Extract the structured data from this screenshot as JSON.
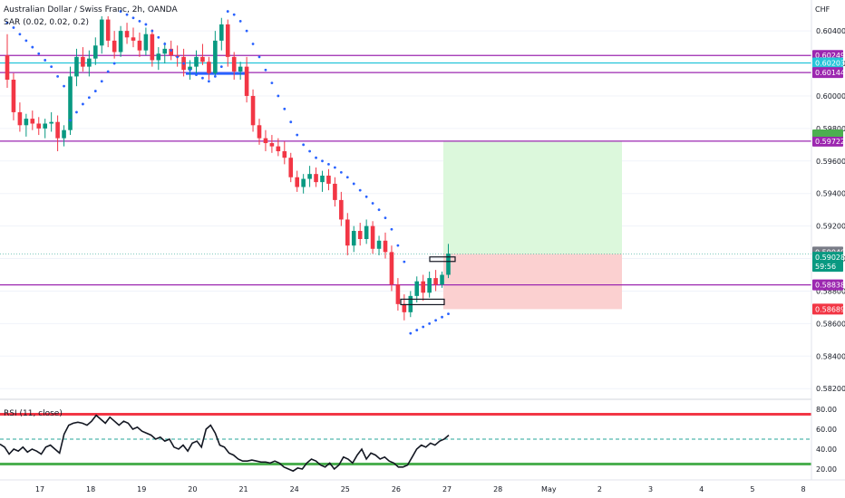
{
  "header": {
    "title": "Australian Dollar / Swiss Franc, 2h, OANDA",
    "sar_label": "SAR (0.02, 0.02, 0.2)",
    "currency": "CHF"
  },
  "rsi": {
    "label": "RSI (11, close)",
    "ticks": [
      "80.00",
      "60.00",
      "40.00",
      "20.00"
    ],
    "tick_values": [
      80,
      60,
      40,
      20
    ],
    "upper_level": 75,
    "lower_level": 25,
    "mid_level": 50,
    "values": [
      45,
      42,
      35,
      40,
      38,
      42,
      37,
      40,
      38,
      35,
      42,
      44,
      40,
      36,
      55,
      64,
      66,
      67,
      66,
      64,
      68,
      74,
      70,
      66,
      72,
      68,
      64,
      68,
      66,
      60,
      62,
      58,
      56,
      54,
      50,
      52,
      48,
      50,
      42,
      40,
      44,
      38,
      46,
      48,
      42,
      60,
      64,
      56,
      44,
      42,
      36,
      34,
      30,
      28,
      28,
      29,
      28,
      27,
      27,
      26,
      28,
      26,
      22,
      20,
      18,
      21,
      20,
      26,
      30,
      28,
      24,
      22,
      26,
      20,
      24,
      32,
      30,
      26,
      34,
      40,
      30,
      36,
      34,
      30,
      32,
      28,
      26,
      22,
      22,
      24,
      32,
      40,
      44,
      42,
      46,
      44,
      48,
      50,
      54
    ],
    "colors": {
      "upper": "#f23645",
      "lower": "#4caf50",
      "mid": "#26a69a",
      "line": "#131722"
    }
  },
  "price_axis": {
    "ticks": [
      "0.60400",
      "0.60200",
      "0.60000",
      "0.59800",
      "0.59600",
      "0.59400",
      "0.59200",
      "0.59000",
      "0.58800",
      "0.58600",
      "0.58400",
      "0.58200"
    ],
    "tick_values": [
      0.604,
      0.602,
      0.6,
      0.598,
      0.596,
      0.594,
      0.592,
      0.59,
      0.588,
      0.586,
      0.584,
      0.582
    ]
  },
  "time_axis": {
    "labels": [
      "17",
      "18",
      "19",
      "20",
      "21",
      "24",
      "25",
      "26",
      "27",
      "28",
      "May",
      "2",
      "3",
      "4",
      "5",
      "8"
    ]
  },
  "levels": [
    {
      "value": 0.60249,
      "label": "0.60249",
      "color": "#9c27b0"
    },
    {
      "value": 0.60203,
      "label": "0.60203",
      "color": "#26c6da"
    },
    {
      "value": 0.60144,
      "label": "0.60144",
      "color": "#9c27b0"
    },
    {
      "value": 0.59722,
      "label": "0.59722",
      "color": "#9c27b0"
    },
    {
      "value": 0.58838,
      "label": "0.58838",
      "color": "#9c27b0"
    }
  ],
  "position": {
    "target": 0.5972,
    "entry": 0.59028,
    "stop": 0.58689,
    "target_label": "0.59722",
    "stop_label": "0.58689",
    "profit_color": "#dcf8dc",
    "loss_color": "#fbd0d0"
  },
  "current_price": {
    "value": 0.59028,
    "label": "0.59028",
    "countdown": "59:56",
    "color": "#089981"
  },
  "prev_close": {
    "value": 0.5904,
    "label": "0.59040",
    "color": "#787b86"
  },
  "chart_data": {
    "type": "candlestick",
    "symbol": "AUDCHF",
    "timeframe": "2h",
    "ylim": [
      0.5814,
      0.6059
    ],
    "colors": {
      "up": "#089981",
      "down": "#f23645",
      "sar": "#2962ff"
    },
    "candles": [
      [
        0.6025,
        0.6038,
        0.6005,
        0.601
      ],
      [
        0.601,
        0.6014,
        0.5985,
        0.599
      ],
      [
        0.599,
        0.5996,
        0.5978,
        0.5982
      ],
      [
        0.5982,
        0.5989,
        0.5975,
        0.5986
      ],
      [
        0.5986,
        0.5991,
        0.5979,
        0.5983
      ],
      [
        0.5983,
        0.5987,
        0.5976,
        0.598
      ],
      [
        0.598,
        0.5986,
        0.5974,
        0.5983
      ],
      [
        0.5983,
        0.599,
        0.5978,
        0.5984
      ],
      [
        0.5984,
        0.5988,
        0.5966,
        0.5974
      ],
      [
        0.5974,
        0.5982,
        0.5969,
        0.5979
      ],
      [
        0.5979,
        0.6018,
        0.5976,
        0.6012
      ],
      [
        0.6012,
        0.6029,
        0.6006,
        0.6024
      ],
      [
        0.6024,
        0.603,
        0.6015,
        0.6018
      ],
      [
        0.6018,
        0.6028,
        0.6012,
        0.6023
      ],
      [
        0.6023,
        0.6036,
        0.6019,
        0.6031
      ],
      [
        0.6031,
        0.6049,
        0.6026,
        0.6047
      ],
      [
        0.6047,
        0.6049,
        0.603,
        0.6034
      ],
      [
        0.6034,
        0.604,
        0.6023,
        0.6027
      ],
      [
        0.6027,
        0.6043,
        0.6024,
        0.604
      ],
      [
        0.604,
        0.6045,
        0.6032,
        0.6036
      ],
      [
        0.6036,
        0.6042,
        0.603,
        0.6034
      ],
      [
        0.6034,
        0.6039,
        0.6024,
        0.6028
      ],
      [
        0.6028,
        0.6042,
        0.6025,
        0.6038
      ],
      [
        0.6038,
        0.6041,
        0.6018,
        0.6022
      ],
      [
        0.6022,
        0.603,
        0.6016,
        0.6026
      ],
      [
        0.6026,
        0.6033,
        0.602,
        0.6029
      ],
      [
        0.6029,
        0.6034,
        0.6022,
        0.6025
      ],
      [
        0.6025,
        0.6031,
        0.6018,
        0.6024
      ],
      [
        0.6024,
        0.6029,
        0.6012,
        0.6016
      ],
      [
        0.6016,
        0.6022,
        0.601,
        0.6018
      ],
      [
        0.6018,
        0.6028,
        0.6014,
        0.6024
      ],
      [
        0.6024,
        0.6032,
        0.6019,
        0.6021
      ],
      [
        0.6021,
        0.6024,
        0.601,
        0.6014
      ],
      [
        0.6014,
        0.604,
        0.6012,
        0.6034
      ],
      [
        0.6034,
        0.6048,
        0.6028,
        0.6044
      ],
      [
        0.6044,
        0.6047,
        0.6018,
        0.6024
      ],
      [
        0.6024,
        0.6027,
        0.601,
        0.6015
      ],
      [
        0.6015,
        0.6021,
        0.601,
        0.6018
      ],
      [
        0.6018,
        0.6024,
        0.5996,
        0.6
      ],
      [
        0.6,
        0.6004,
        0.5978,
        0.5982
      ],
      [
        0.5982,
        0.5986,
        0.597,
        0.5974
      ],
      [
        0.5974,
        0.5979,
        0.5966,
        0.5971
      ],
      [
        0.5971,
        0.5976,
        0.5965,
        0.5969
      ],
      [
        0.5969,
        0.5974,
        0.5963,
        0.5966
      ],
      [
        0.5966,
        0.5972,
        0.5958,
        0.5962
      ],
      [
        0.5962,
        0.5965,
        0.5947,
        0.595
      ],
      [
        0.595,
        0.5954,
        0.5941,
        0.5944
      ],
      [
        0.5944,
        0.5952,
        0.594,
        0.5949
      ],
      [
        0.5949,
        0.5957,
        0.5944,
        0.5952
      ],
      [
        0.5952,
        0.5956,
        0.5944,
        0.5947
      ],
      [
        0.5947,
        0.5954,
        0.5941,
        0.5951
      ],
      [
        0.5951,
        0.5955,
        0.5942,
        0.5946
      ],
      [
        0.5946,
        0.595,
        0.5932,
        0.5936
      ],
      [
        0.5936,
        0.5941,
        0.592,
        0.5924
      ],
      [
        0.5924,
        0.5928,
        0.5902,
        0.5908
      ],
      [
        0.5908,
        0.592,
        0.5904,
        0.5917
      ],
      [
        0.5917,
        0.5922,
        0.5908,
        0.5912
      ],
      [
        0.5912,
        0.5924,
        0.5909,
        0.592
      ],
      [
        0.592,
        0.5923,
        0.5903,
        0.5906
      ],
      [
        0.5906,
        0.5914,
        0.5902,
        0.5911
      ],
      [
        0.5911,
        0.5916,
        0.59,
        0.5904
      ],
      [
        0.5904,
        0.5908,
        0.588,
        0.5884
      ],
      [
        0.5884,
        0.5888,
        0.5868,
        0.5872
      ],
      [
        0.5872,
        0.5878,
        0.5862,
        0.5867
      ],
      [
        0.5867,
        0.588,
        0.5864,
        0.5877
      ],
      [
        0.5877,
        0.5889,
        0.5873,
        0.5886
      ],
      [
        0.5886,
        0.589,
        0.5874,
        0.5879
      ],
      [
        0.5879,
        0.5892,
        0.5876,
        0.5888
      ],
      [
        0.5888,
        0.5893,
        0.588,
        0.5884
      ],
      [
        0.5884,
        0.5892,
        0.5882,
        0.589
      ],
      [
        0.589,
        0.5909,
        0.5888,
        0.5903
      ]
    ],
    "sar": [
      0.6045,
      0.6042,
      0.6038,
      0.6034,
      0.603,
      0.6026,
      0.6022,
      0.6018,
      0.6012,
      0.6006,
      0.5985,
      0.599,
      0.5995,
      0.5999,
      0.6003,
      0.6009,
      0.6015,
      0.602,
      0.6052,
      0.605,
      0.6048,
      0.6046,
      0.6044,
      0.604,
      0.6036,
      0.6032,
      0.6028,
      0.6024,
      0.602,
      0.6016,
      0.6013,
      0.6011,
      0.6009,
      0.6012,
      0.6018,
      0.6052,
      0.605,
      0.6046,
      0.604,
      0.6032,
      0.6024,
      0.6016,
      0.6008,
      0.6,
      0.5992,
      0.5984,
      0.5976,
      0.597,
      0.5966,
      0.5962,
      0.596,
      0.5958,
      0.5956,
      0.5953,
      0.595,
      0.5946,
      0.5942,
      0.5938,
      0.5934,
      0.593,
      0.5925,
      0.5918,
      0.5908,
      0.5898,
      0.5854,
      0.5856,
      0.5858,
      0.586,
      0.5862,
      0.5864,
      0.5866
    ]
  }
}
